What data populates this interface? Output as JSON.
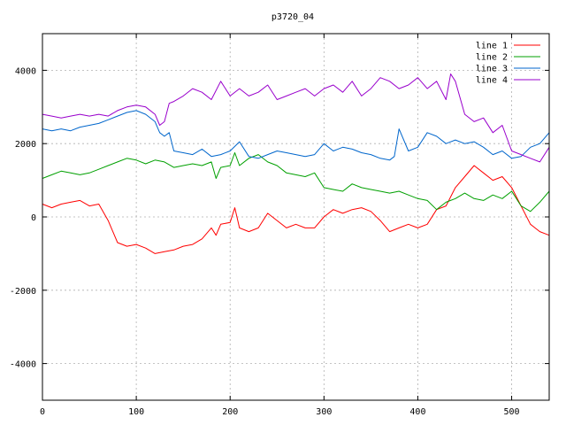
{
  "chart_data": {
    "type": "line",
    "title": "p3720_04",
    "xlabel": "",
    "ylabel": "",
    "xlim": [
      0,
      540
    ],
    "ylim": [
      -5000,
      5000
    ],
    "x_ticks": [
      0,
      100,
      200,
      300,
      400,
      500
    ],
    "y_ticks": [
      -4000,
      -2000,
      0,
      2000,
      4000
    ],
    "grid": true,
    "legend_position": "top-right",
    "series": [
      {
        "name": "line 1",
        "color": "#ff0000",
        "x": [
          0,
          10,
          20,
          30,
          40,
          50,
          60,
          70,
          80,
          90,
          100,
          110,
          120,
          130,
          140,
          150,
          160,
          170,
          180,
          185,
          190,
          200,
          205,
          210,
          220,
          230,
          240,
          250,
          260,
          270,
          280,
          290,
          300,
          310,
          320,
          330,
          340,
          350,
          360,
          370,
          380,
          390,
          400,
          410,
          420,
          430,
          440,
          450,
          460,
          470,
          480,
          490,
          500,
          510,
          520,
          530,
          540
        ],
        "values": [
          350,
          250,
          350,
          400,
          450,
          300,
          350,
          -100,
          -700,
          -800,
          -750,
          -850,
          -1000,
          -950,
          -900,
          -800,
          -750,
          -600,
          -300,
          -500,
          -200,
          -150,
          250,
          -300,
          -400,
          -300,
          100,
          -100,
          -300,
          -200,
          -300,
          -300,
          0,
          200,
          100,
          200,
          250,
          150,
          -100,
          -400,
          -300,
          -200,
          -300,
          -200,
          200,
          300,
          800,
          1100,
          1400,
          1200,
          1000,
          1100,
          800,
          300,
          -200,
          -400,
          -500
        ]
      },
      {
        "name": "line 2",
        "color": "#00a000",
        "x": [
          0,
          10,
          20,
          30,
          40,
          50,
          60,
          70,
          80,
          90,
          100,
          110,
          120,
          130,
          140,
          150,
          160,
          170,
          180,
          185,
          190,
          200,
          205,
          210,
          220,
          230,
          240,
          250,
          260,
          270,
          280,
          290,
          300,
          310,
          320,
          330,
          340,
          350,
          360,
          370,
          380,
          390,
          400,
          410,
          420,
          430,
          440,
          450,
          460,
          470,
          480,
          490,
          500,
          510,
          520,
          530,
          540
        ],
        "values": [
          1050,
          1150,
          1250,
          1200,
          1150,
          1200,
          1300,
          1400,
          1500,
          1600,
          1550,
          1450,
          1550,
          1500,
          1350,
          1400,
          1450,
          1400,
          1500,
          1050,
          1350,
          1400,
          1750,
          1400,
          1600,
          1700,
          1500,
          1400,
          1200,
          1150,
          1100,
          1200,
          800,
          750,
          700,
          900,
          800,
          750,
          700,
          650,
          700,
          600,
          500,
          450,
          200,
          400,
          500,
          650,
          500,
          450,
          600,
          500,
          700,
          300,
          150,
          400,
          700
        ]
      },
      {
        "name": "line 3",
        "color": "#0066cc",
        "x": [
          0,
          10,
          20,
          30,
          40,
          50,
          60,
          70,
          80,
          90,
          100,
          110,
          120,
          125,
          130,
          135,
          140,
          150,
          160,
          170,
          180,
          190,
          200,
          210,
          220,
          230,
          240,
          250,
          260,
          270,
          280,
          290,
          300,
          310,
          320,
          330,
          340,
          350,
          360,
          370,
          375,
          380,
          390,
          400,
          410,
          420,
          430,
          440,
          450,
          460,
          470,
          480,
          490,
          500,
          510,
          520,
          530,
          540
        ],
        "values": [
          2400,
          2350,
          2400,
          2350,
          2450,
          2500,
          2550,
          2650,
          2750,
          2850,
          2900,
          2800,
          2600,
          2300,
          2200,
          2300,
          1800,
          1750,
          1700,
          1850,
          1650,
          1700,
          1800,
          2050,
          1650,
          1600,
          1700,
          1800,
          1750,
          1700,
          1650,
          1700,
          2000,
          1800,
          1900,
          1850,
          1750,
          1700,
          1600,
          1550,
          1650,
          2400,
          1800,
          1900,
          2300,
          2200,
          2000,
          2100,
          2000,
          2050,
          1900,
          1700,
          1800,
          1600,
          1650,
          1900,
          2000,
          2300
        ]
      },
      {
        "name": "line 4",
        "color": "#9900cc",
        "x": [
          0,
          10,
          20,
          30,
          40,
          50,
          60,
          70,
          80,
          90,
          100,
          110,
          120,
          125,
          130,
          135,
          140,
          150,
          160,
          170,
          180,
          190,
          200,
          210,
          220,
          230,
          240,
          250,
          260,
          270,
          280,
          290,
          300,
          310,
          320,
          330,
          340,
          350,
          360,
          370,
          380,
          390,
          400,
          410,
          420,
          430,
          435,
          440,
          450,
          460,
          470,
          480,
          490,
          500,
          510,
          520,
          530,
          540
        ],
        "values": [
          2800,
          2750,
          2700,
          2750,
          2800,
          2750,
          2800,
          2750,
          2900,
          3000,
          3050,
          3000,
          2800,
          2500,
          2600,
          3100,
          3150,
          3300,
          3500,
          3400,
          3200,
          3700,
          3300,
          3500,
          3300,
          3400,
          3600,
          3200,
          3300,
          3400,
          3500,
          3300,
          3500,
          3600,
          3400,
          3700,
          3300,
          3500,
          3800,
          3700,
          3500,
          3600,
          3800,
          3500,
          3700,
          3200,
          3900,
          3700,
          2800,
          2600,
          2700,
          2300,
          2500,
          1800,
          1700,
          1600,
          1500,
          1900
        ]
      }
    ]
  }
}
